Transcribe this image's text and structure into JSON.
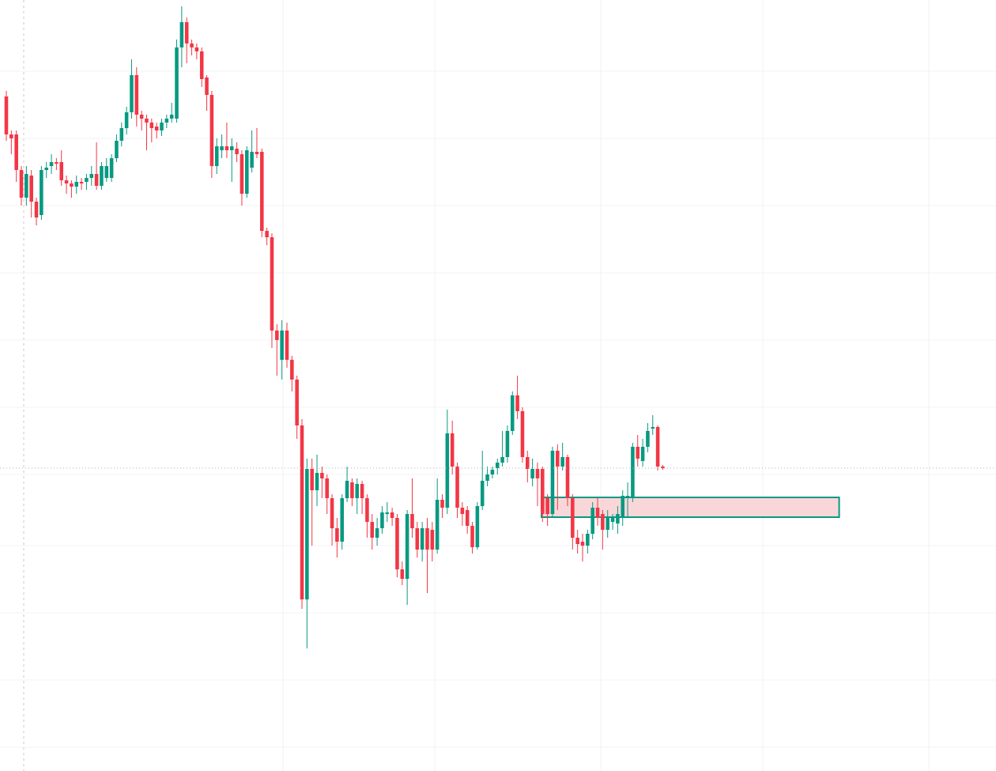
{
  "chart_data": {
    "type": "candlestick",
    "up_color": "#089981",
    "down_color": "#f23645",
    "ylim": [
      25,
      1000
    ],
    "xlim": [
      -1.26,
      197.5
    ],
    "yticks": [
      910,
      825,
      740,
      655,
      570,
      485,
      400,
      310,
      225,
      140,
      55
    ],
    "grid": true,
    "zone": {
      "top": 371,
      "bottom": 346,
      "x0": 106.8,
      "x1": 166.2,
      "fill": "#f9d7d9",
      "border": "#089981"
    },
    "ohlc": [
      [
        878,
        885,
        822,
        830
      ],
      [
        830,
        835,
        805,
        825
      ],
      [
        830,
        835,
        770,
        785
      ],
      [
        785,
        790,
        740,
        750
      ],
      [
        750,
        790,
        740,
        780
      ],
      [
        778,
        785,
        725,
        745
      ],
      [
        745,
        750,
        715,
        725
      ],
      [
        728,
        790,
        722,
        785
      ],
      [
        785,
        795,
        775,
        788
      ],
      [
        790,
        805,
        780,
        795
      ],
      [
        795,
        800,
        785,
        793
      ],
      [
        795,
        810,
        765,
        772
      ],
      [
        772,
        778,
        755,
        768
      ],
      [
        768,
        772,
        750,
        764
      ],
      [
        764,
        778,
        755,
        770
      ],
      [
        770,
        775,
        760,
        768
      ],
      [
        770,
        780,
        760,
        775
      ],
      [
        775,
        790,
        765,
        780
      ],
      [
        780,
        820,
        760,
        765
      ],
      [
        765,
        795,
        760,
        790
      ],
      [
        775,
        800,
        770,
        790
      ],
      [
        775,
        805,
        770,
        800
      ],
      [
        800,
        830,
        795,
        822
      ],
      [
        822,
        845,
        815,
        838
      ],
      [
        838,
        865,
        830,
        858
      ],
      [
        858,
        925,
        850,
        905
      ],
      [
        905,
        915,
        840,
        855
      ],
      [
        855,
        860,
        835,
        850
      ],
      [
        850,
        855,
        810,
        845
      ],
      [
        845,
        850,
        820,
        838
      ],
      [
        840,
        845,
        825,
        835
      ],
      [
        835,
        850,
        828,
        845
      ],
      [
        845,
        855,
        838,
        850
      ],
      [
        850,
        870,
        845,
        855
      ],
      [
        850,
        950,
        845,
        940
      ],
      [
        940,
        992,
        915,
        972
      ],
      [
        972,
        978,
        920,
        945
      ],
      [
        945,
        950,
        930,
        940
      ],
      [
        940,
        945,
        925,
        935
      ],
      [
        935,
        940,
        890,
        900
      ],
      [
        902,
        905,
        860,
        880
      ],
      [
        880,
        885,
        775,
        790
      ],
      [
        790,
        825,
        780,
        815
      ],
      [
        810,
        830,
        800,
        815
      ],
      [
        815,
        845,
        800,
        810
      ],
      [
        810,
        825,
        770,
        815
      ],
      [
        812,
        820,
        795,
        805
      ],
      [
        805,
        810,
        740,
        755
      ],
      [
        755,
        815,
        750,
        810
      ],
      [
        788,
        835,
        782,
        808
      ],
      [
        808,
        838,
        800,
        805
      ],
      [
        808,
        812,
        700,
        708
      ],
      [
        708,
        712,
        690,
        700
      ],
      [
        700,
        705,
        560,
        582
      ],
      [
        582,
        590,
        525,
        570
      ],
      [
        545,
        595,
        520,
        582
      ],
      [
        582,
        592,
        535,
        545
      ],
      [
        545,
        550,
        505,
        520
      ],
      [
        520,
        525,
        445,
        462
      ],
      [
        462,
        470,
        230,
        242
      ],
      [
        242,
        420,
        180,
        407
      ],
      [
        407,
        420,
        310,
        380
      ],
      [
        380,
        425,
        360,
        402
      ],
      [
        402,
        410,
        370,
        395
      ],
      [
        395,
        400,
        350,
        370
      ],
      [
        370,
        375,
        310,
        332
      ],
      [
        332,
        345,
        295,
        315
      ],
      [
        315,
        375,
        305,
        370
      ],
      [
        370,
        410,
        365,
        392
      ],
      [
        390,
        395,
        360,
        370
      ],
      [
        370,
        395,
        350,
        388
      ],
      [
        388,
        392,
        350,
        370
      ],
      [
        370,
        375,
        320,
        340
      ],
      [
        340,
        350,
        305,
        320
      ],
      [
        320,
        345,
        310,
        332
      ],
      [
        332,
        360,
        325,
        352
      ],
      [
        350,
        365,
        340,
        352
      ],
      [
        352,
        358,
        335,
        345
      ],
      [
        345,
        350,
        270,
        280
      ],
      [
        280,
        290,
        260,
        268
      ],
      [
        268,
        355,
        235,
        350
      ],
      [
        350,
        395,
        320,
        332
      ],
      [
        332,
        340,
        295,
        305
      ],
      [
        305,
        340,
        290,
        332
      ],
      [
        332,
        345,
        250,
        305
      ],
      [
        330,
        340,
        290,
        305
      ],
      [
        305,
        395,
        300,
        368
      ],
      [
        368,
        375,
        345,
        358
      ],
      [
        358,
        482,
        350,
        452
      ],
      [
        452,
        468,
        400,
        410
      ],
      [
        410,
        415,
        345,
        358
      ],
      [
        358,
        365,
        335,
        350
      ],
      [
        355,
        360,
        325,
        335
      ],
      [
        335,
        340,
        300,
        308
      ],
      [
        308,
        365,
        305,
        360
      ],
      [
        360,
        430,
        355,
        392
      ],
      [
        392,
        410,
        385,
        400
      ],
      [
        400,
        410,
        395,
        406
      ],
      [
        408,
        420,
        400,
        415
      ],
      [
        415,
        455,
        410,
        422
      ],
      [
        422,
        462,
        415,
        455
      ],
      [
        455,
        505,
        450,
        500
      ],
      [
        500,
        525,
        470,
        480
      ],
      [
        480,
        485,
        415,
        422
      ],
      [
        422,
        430,
        390,
        407
      ],
      [
        395,
        420,
        385,
        407
      ],
      [
        407,
        415,
        360,
        395
      ],
      [
        407,
        410,
        340,
        350
      ],
      [
        370,
        375,
        335,
        350
      ],
      [
        350,
        435,
        345,
        430
      ],
      [
        430,
        438,
        355,
        410
      ],
      [
        410,
        440,
        405,
        422
      ],
      [
        422,
        425,
        360,
        370
      ],
      [
        370,
        375,
        305,
        320
      ],
      [
        320,
        330,
        300,
        312
      ],
      [
        315,
        325,
        290,
        310
      ],
      [
        310,
        330,
        300,
        325
      ],
      [
        325,
        365,
        318,
        358
      ],
      [
        358,
        370,
        335,
        345
      ],
      [
        350,
        355,
        305,
        330
      ],
      [
        330,
        355,
        320,
        345
      ],
      [
        340,
        350,
        330,
        345
      ],
      [
        338,
        360,
        325,
        350
      ],
      [
        345,
        380,
        335,
        373
      ],
      [
        372,
        390,
        345,
        373
      ],
      [
        372,
        440,
        365,
        435
      ],
      [
        435,
        450,
        410,
        420
      ],
      [
        417,
        445,
        410,
        435
      ],
      [
        435,
        465,
        428,
        455
      ],
      [
        458,
        475,
        450,
        460
      ],
      [
        460,
        462,
        405,
        410
      ],
      [
        410,
        412,
        406,
        408
      ]
    ]
  }
}
